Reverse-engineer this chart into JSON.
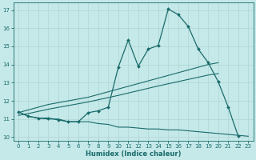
{
  "xlabel": "Humidex (Indice chaleur)",
  "bg_color": "#c5e8e8",
  "line_color": "#1a6b6b",
  "grid_color": "#afd4d4",
  "xlim": [
    -0.5,
    23.5
  ],
  "ylim": [
    9.8,
    17.4
  ],
  "xticks": [
    0,
    1,
    2,
    3,
    4,
    5,
    6,
    7,
    8,
    9,
    10,
    11,
    12,
    13,
    14,
    15,
    16,
    17,
    18,
    19,
    20,
    21,
    22,
    23
  ],
  "yticks": [
    10,
    11,
    12,
    13,
    14,
    15,
    16,
    17
  ],
  "series_main_x": [
    0,
    1,
    2,
    3,
    4,
    5,
    6,
    7,
    8,
    9,
    10,
    11,
    12,
    13,
    14,
    15,
    16,
    17,
    18,
    19,
    20,
    21,
    22
  ],
  "series_main_y": [
    11.4,
    11.15,
    11.05,
    11.05,
    10.95,
    10.85,
    10.85,
    11.35,
    11.45,
    11.65,
    13.85,
    15.35,
    13.9,
    14.85,
    15.05,
    17.05,
    16.75,
    16.1,
    14.85,
    14.1,
    13.05,
    11.65,
    10.05
  ],
  "series_upper_x": [
    0,
    1,
    2,
    3,
    4,
    5,
    6,
    7,
    8,
    9,
    10,
    11,
    12,
    13,
    14,
    15,
    16,
    17,
    18,
    19,
    20
  ],
  "series_upper_y": [
    11.35,
    11.5,
    11.65,
    11.8,
    11.9,
    12.0,
    12.1,
    12.2,
    12.35,
    12.5,
    12.65,
    12.8,
    12.95,
    13.1,
    13.25,
    13.4,
    13.55,
    13.7,
    13.85,
    14.0,
    14.1
  ],
  "series_lower_x": [
    0,
    1,
    2,
    3,
    4,
    5,
    6,
    7,
    8,
    9,
    10,
    11,
    12,
    13,
    14,
    15,
    16,
    17,
    18,
    19,
    20
  ],
  "series_lower_y": [
    11.2,
    11.3,
    11.42,
    11.54,
    11.64,
    11.74,
    11.84,
    11.94,
    12.06,
    12.18,
    12.3,
    12.43,
    12.56,
    12.69,
    12.82,
    12.94,
    13.06,
    13.18,
    13.3,
    13.42,
    13.5
  ],
  "series_min_x": [
    0,
    1,
    2,
    3,
    4,
    5,
    6,
    7,
    8,
    9,
    10,
    11,
    12,
    13,
    14,
    15,
    16,
    17,
    18,
    19,
    20,
    21,
    22,
    23
  ],
  "series_min_y": [
    11.4,
    11.15,
    11.05,
    11.0,
    11.0,
    10.85,
    10.85,
    10.85,
    10.75,
    10.7,
    10.55,
    10.55,
    10.5,
    10.45,
    10.45,
    10.4,
    10.4,
    10.35,
    10.3,
    10.25,
    10.2,
    10.15,
    10.1,
    10.05
  ]
}
